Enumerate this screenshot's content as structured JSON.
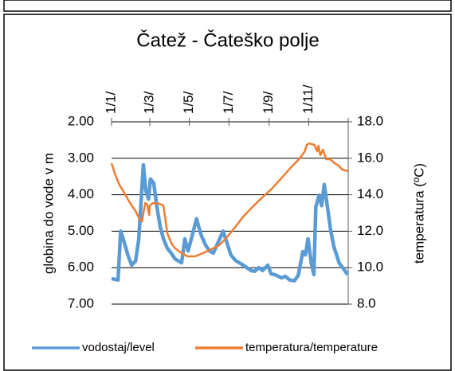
{
  "chart_data": {
    "type": "line",
    "title": "Čatež - Čateško polje",
    "y_label": "globina do vode v m",
    "y2_label": "temperatura (ºC)",
    "xlim": [
      0,
      365
    ],
    "xticks": [
      {
        "value": 0,
        "label": "1/1/"
      },
      {
        "value": 59,
        "label": "1/3/"
      },
      {
        "value": 120,
        "label": "1/5/"
      },
      {
        "value": 181,
        "label": "1/7/"
      },
      {
        "value": 243,
        "label": "1/9/"
      },
      {
        "value": 304,
        "label": "1/11/"
      }
    ],
    "ylim": [
      7,
      2
    ],
    "yticks": [
      {
        "value": 2,
        "label": "2.00"
      },
      {
        "value": 3,
        "label": "3.00"
      },
      {
        "value": 4,
        "label": "4.00"
      },
      {
        "value": 5,
        "label": "5.00"
      },
      {
        "value": 6,
        "label": "6.00"
      },
      {
        "value": 7,
        "label": "7.00"
      }
    ],
    "y2lim": [
      8,
      18
    ],
    "y2ticks": [
      {
        "value": 18,
        "label": "18.0"
      },
      {
        "value": 16,
        "label": "16.0"
      },
      {
        "value": 14,
        "label": "14.0"
      },
      {
        "value": 12,
        "label": "12.0"
      },
      {
        "value": 10,
        "label": "10.0"
      },
      {
        "value": 8,
        "label": "8.0"
      }
    ],
    "grid": true,
    "legend": "bottom",
    "series": [
      {
        "name": "vodostaj/level",
        "color": "#5b9bd5",
        "x": [
          0,
          10,
          14,
          18,
          25,
          31,
          37,
          42,
          45,
          49,
          53,
          57,
          60,
          65,
          70,
          75,
          80,
          86,
          92,
          98,
          108,
          113,
          118,
          123,
          131,
          138,
          145,
          151,
          157,
          164,
          172,
          178,
          184,
          191,
          203,
          215,
          221,
          227,
          233,
          241,
          246,
          253,
          262,
          268,
          275,
          282,
          288,
          295,
          299,
          303,
          308,
          312,
          315,
          320,
          324,
          328,
          333,
          338,
          343,
          351,
          358,
          364
        ],
        "values": [
          6.3,
          6.34,
          5.0,
          5.21,
          5.65,
          5.93,
          5.82,
          5.21,
          4.34,
          3.18,
          3.9,
          4.12,
          3.57,
          3.68,
          4.34,
          4.88,
          5.21,
          5.47,
          5.6,
          5.76,
          5.87,
          5.21,
          5.54,
          5.21,
          4.66,
          5.1,
          5.38,
          5.54,
          5.6,
          5.32,
          5.0,
          5.32,
          5.65,
          5.8,
          5.93,
          6.08,
          6.1,
          6.0,
          6.08,
          5.93,
          6.17,
          6.2,
          6.28,
          6.24,
          6.34,
          6.36,
          6.21,
          5.56,
          5.65,
          5.21,
          5.87,
          6.19,
          4.34,
          4.01,
          4.3,
          3.72,
          4.34,
          4.99,
          5.43,
          5.87,
          6.04,
          6.19
        ]
      },
      {
        "name": "temperatura/temperature",
        "color": "#ed7d31",
        "axis": "y2",
        "x": [
          0,
          6,
          12,
          18,
          25,
          31,
          37,
          43,
          47,
          49,
          52,
          55,
          58,
          59,
          64,
          74,
          80,
          82,
          86,
          92,
          98,
          108,
          117,
          129,
          141,
          154,
          166,
          178,
          191,
          203,
          215,
          227,
          246,
          264,
          277,
          289,
          298,
          301,
          305,
          313,
          317,
          319,
          322,
          326,
          331,
          337,
          344,
          350,
          356,
          365
        ],
        "values": [
          15.73,
          15.07,
          14.55,
          14.2,
          13.76,
          13.41,
          13.11,
          12.67,
          12.54,
          12.98,
          13.55,
          13.46,
          12.89,
          13.41,
          13.55,
          13.5,
          13.41,
          12.89,
          11.89,
          11.36,
          11.06,
          10.8,
          10.62,
          10.62,
          10.8,
          11.02,
          11.23,
          11.67,
          12.24,
          12.8,
          13.24,
          13.67,
          14.29,
          14.99,
          15.51,
          15.95,
          16.38,
          16.73,
          16.82,
          16.73,
          16.38,
          16.69,
          16.17,
          16.47,
          15.95,
          15.95,
          15.73,
          15.6,
          15.38,
          15.29
        ]
      }
    ]
  }
}
